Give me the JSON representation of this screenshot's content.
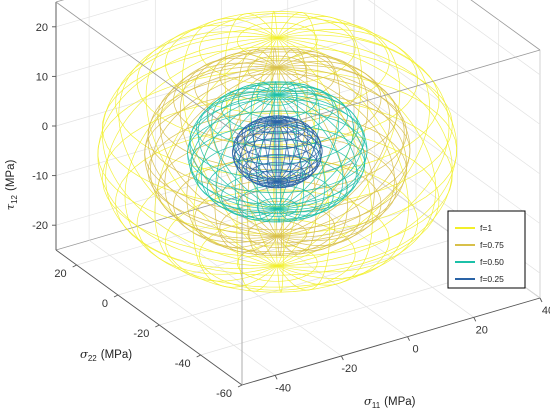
{
  "chart_data": {
    "type": "wireframe-3d-surface",
    "title": "",
    "xlabel": {
      "symbol": "σ",
      "sub": "11",
      "unit": "(MPa)"
    },
    "ylabel": {
      "symbol": "σ",
      "sub": "22",
      "unit": "(MPa)"
    },
    "zlabel": {
      "symbol": "τ",
      "sub": "12",
      "unit": "(MPa)"
    },
    "xticks": [
      "-40",
      "-20",
      "0",
      "20",
      "40"
    ],
    "yticks": [
      "20",
      "0",
      "-20",
      "-40",
      "-60"
    ],
    "zticks": [
      "20",
      "10",
      "0",
      "-10",
      "-20"
    ],
    "xlim": [
      -50,
      40
    ],
    "ylim": [
      -60,
      30
    ],
    "zlim": [
      -25,
      25
    ],
    "grid": true,
    "legend_position": "right",
    "series": [
      {
        "name": "f=1",
        "color": "#f2ef2a",
        "semi_axes_mpa": [
          46,
          46,
          23
        ]
      },
      {
        "name": "f=0.75",
        "color": "#d8c04a",
        "semi_axes_mpa": [
          34,
          34,
          17
        ]
      },
      {
        "name": "f=0.50",
        "color": "#1cc0a8",
        "semi_axes_mpa": [
          23,
          23,
          11.5
        ]
      },
      {
        "name": "f=0.25",
        "color": "#2a63a6",
        "semi_axes_mpa": [
          11.5,
          11.5,
          6
        ]
      }
    ]
  }
}
